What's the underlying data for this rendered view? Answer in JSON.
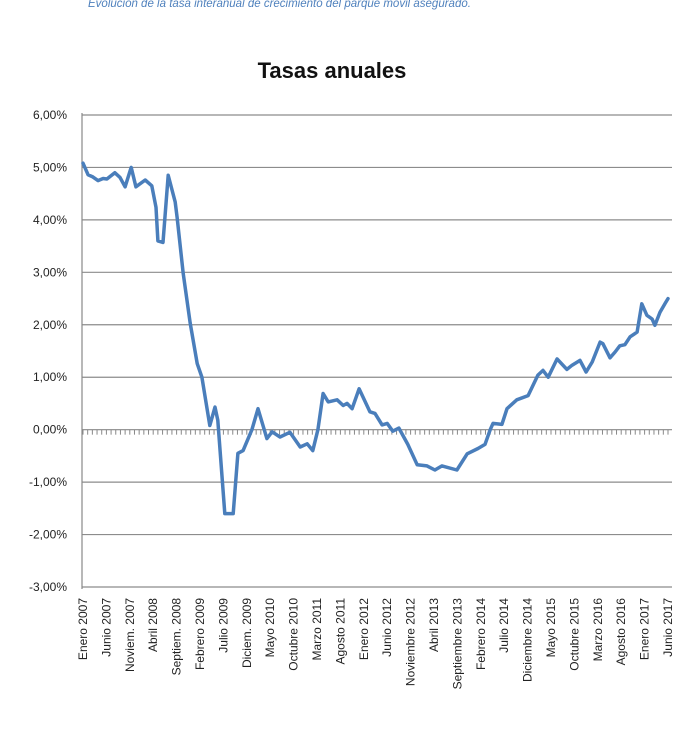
{
  "caption": "Evolución de la tasa interanual de crecimiento del parque móvil asegurado.",
  "chart_data": {
    "type": "line",
    "title": "Tasas anuales",
    "xlabel": "",
    "ylabel": "",
    "ylim": [
      -3,
      6
    ],
    "y_ticks": [
      6,
      5,
      4,
      3,
      2,
      1,
      0,
      -1,
      -2,
      -3
    ],
    "y_tick_labels": [
      "6,00%",
      "5,00%",
      "4,00%",
      "3,00%",
      "2,00%",
      "1,00%",
      "0,00%",
      "-1,00%",
      "-2,00%",
      "-3,00%"
    ],
    "x_unit": "months since Enero 2007",
    "x_range": [
      0,
      125
    ],
    "x_tick_labels": [
      "Enero 2007",
      "Junio 2007",
      "Noviem. 2007",
      "Abril 2008",
      "Septiem. 2008",
      "Febrero 2009",
      "Julio 2009",
      "Diciem. 2009",
      "Mayo 2010",
      "Octubre 2010",
      "Marzo 2011",
      "Agosto 2011",
      "Enero 2012",
      "Junio 2012",
      "Noviembre 2012",
      "Abril 2013",
      "Septiembre 2013",
      "Febrero 2014",
      "Julio 2014",
      "Diciembre 2014",
      "Mayo 2015",
      "Octubre 2015",
      "Marzo 2016",
      "Agosto 2016",
      "Enero 2017",
      "Junio 2017"
    ],
    "x_tick_step_months": 5,
    "grid": true,
    "series": [
      {
        "name": "Tasa anual",
        "color": "#4a7ebb",
        "points": [
          [
            0,
            5.08
          ],
          [
            1.1,
            4.86
          ],
          [
            2.1,
            4.82
          ],
          [
            3.2,
            4.75
          ],
          [
            4.3,
            4.79
          ],
          [
            5.1,
            4.78
          ],
          [
            6.8,
            4.9
          ],
          [
            7.9,
            4.81
          ],
          [
            9,
            4.63
          ],
          [
            10.3,
            5.0
          ],
          [
            11.3,
            4.63
          ],
          [
            13.3,
            4.76
          ],
          [
            14.7,
            4.65
          ],
          [
            15.6,
            4.24
          ],
          [
            16,
            3.6
          ],
          [
            17.1,
            3.57
          ],
          [
            18.2,
            4.85
          ],
          [
            19.7,
            4.34
          ],
          [
            20.1,
            4.05
          ],
          [
            21.4,
            2.98
          ],
          [
            22.9,
            2.03
          ],
          [
            24.4,
            1.26
          ],
          [
            25.4,
            1.0
          ],
          [
            27.1,
            0.08
          ],
          [
            28.2,
            0.43
          ],
          [
            28.8,
            0.18
          ],
          [
            30.3,
            -1.6
          ],
          [
            32.1,
            -1.6
          ],
          [
            33.1,
            -0.45
          ],
          [
            34.2,
            -0.4
          ],
          [
            36.1,
            0.0
          ],
          [
            37.4,
            0.4
          ],
          [
            39.3,
            -0.17
          ],
          [
            40.4,
            -0.04
          ],
          [
            42.1,
            -0.14
          ],
          [
            44.2,
            -0.05
          ],
          [
            46.4,
            -0.33
          ],
          [
            47.9,
            -0.27
          ],
          [
            49.1,
            -0.4
          ],
          [
            50.2,
            0.0
          ],
          [
            51.3,
            0.69
          ],
          [
            52.4,
            0.53
          ],
          [
            54.3,
            0.57
          ],
          [
            55.6,
            0.46
          ],
          [
            56.4,
            0.5
          ],
          [
            57.5,
            0.4
          ],
          [
            59,
            0.78
          ],
          [
            61.3,
            0.34
          ],
          [
            62.4,
            0.31
          ],
          [
            63.9,
            0.09
          ],
          [
            65,
            0.12
          ],
          [
            66.2,
            -0.03
          ],
          [
            67.5,
            0.03
          ],
          [
            69.4,
            -0.28
          ],
          [
            71.4,
            -0.67
          ],
          [
            73.5,
            -0.69
          ],
          [
            75.2,
            -0.77
          ],
          [
            76.7,
            -0.69
          ],
          [
            79.9,
            -0.77
          ],
          [
            82.1,
            -0.46
          ],
          [
            84.4,
            -0.36
          ],
          [
            85.9,
            -0.28
          ],
          [
            87,
            0.0
          ],
          [
            87.6,
            0.12
          ],
          [
            89.5,
            0.1
          ],
          [
            90.6,
            0.4
          ],
          [
            92.7,
            0.57
          ],
          [
            95.1,
            0.65
          ],
          [
            97.2,
            1.04
          ],
          [
            98.3,
            1.13
          ],
          [
            99.4,
            1.0
          ],
          [
            101.3,
            1.35
          ],
          [
            103.4,
            1.15
          ],
          [
            104.5,
            1.23
          ],
          [
            106.2,
            1.32
          ],
          [
            107.5,
            1.1
          ],
          [
            108.8,
            1.29
          ],
          [
            110.5,
            1.67
          ],
          [
            111.1,
            1.64
          ],
          [
            112.6,
            1.37
          ],
          [
            113.7,
            1.48
          ],
          [
            114.7,
            1.6
          ],
          [
            115.8,
            1.62
          ],
          [
            116.9,
            1.77
          ],
          [
            118.4,
            1.86
          ],
          [
            119.4,
            2.4
          ],
          [
            120.5,
            2.18
          ],
          [
            121.6,
            2.11
          ],
          [
            122.2,
            1.99
          ],
          [
            123.3,
            2.24
          ],
          [
            124.4,
            2.41
          ],
          [
            125,
            2.5
          ]
        ]
      }
    ]
  }
}
